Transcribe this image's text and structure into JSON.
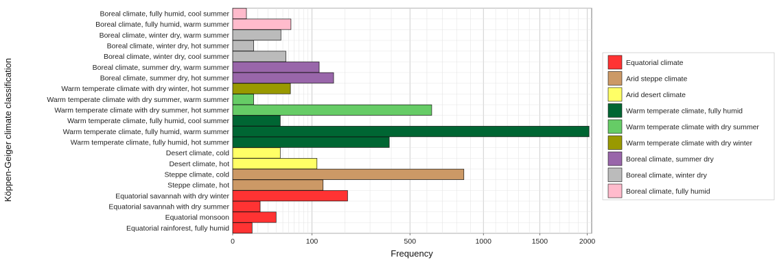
{
  "chart_data": {
    "type": "bar",
    "orientation": "horizontal",
    "xlabel": "Frequency",
    "ylabel": "Köppen-Geiger climate classification",
    "x_scale": "square-root",
    "xlim": [
      0,
      2050
    ],
    "x_ticks": [
      0,
      100,
      500,
      1000,
      1500,
      2000
    ],
    "grid": true,
    "legend_position": "right",
    "categories": [
      "Boreal climate, fully humid,  cool summer",
      "Boreal climate, fully humid,  warm summer",
      "Boreal climate, winter dry,  warm summer",
      "Boreal climate, winter dry,  hot summer",
      "Boreal climate, winter dry,  cool summer",
      "Boreal climate, summer dry, warm summer",
      "Boreal climate, summer dry,  hot summer",
      "Warm temperate climate with dry winter, hot summer",
      "Warm temperate climate with dry summer, warm summer",
      "Warm temperate climate with dry summer,  hot summer",
      "Warm temperate climate, fully humid,  cool summer",
      "Warm temperate climate, fully humid, warm summer",
      "Warm temperate climate, fully humid,  hot summer",
      "Desert climate, cold",
      "Desert climate, hot",
      "Steppe climate, cold",
      "Steppe climate, hot",
      "Equatorial savannah with dry winter",
      "Equatorial savannah with dry summer",
      "Equatorial monsoon",
      "Equatorial rainforest, fully humid"
    ],
    "values": [
      3,
      54,
      37,
      7,
      45,
      119,
      162,
      53,
      7,
      630,
      36,
      2020,
      390,
      36,
      113,
      850,
      130,
      210,
      12,
      30,
      6
    ],
    "groups": [
      8,
      8,
      7,
      7,
      7,
      6,
      6,
      5,
      4,
      4,
      3,
      3,
      3,
      2,
      2,
      1,
      1,
      0,
      0,
      0,
      0
    ],
    "legend": [
      {
        "label": "Equatorial climate",
        "color": "#ff3333"
      },
      {
        "label": "Arid steppe climate",
        "color": "#cc9966"
      },
      {
        "label": "Arid desert climate",
        "color": "#ffff66"
      },
      {
        "label": "Warm temperate climate, fully humid",
        "color": "#006633"
      },
      {
        "label": "Warm temperate climate with dry summer",
        "color": "#66cc66"
      },
      {
        "label": "Warm temperate climate with dry winter",
        "color": "#999900"
      },
      {
        "label": "Boreal climate, summer dry",
        "color": "#9966aa"
      },
      {
        "label": "Boreal climate, winter dry",
        "color": "#bbbbbb"
      },
      {
        "label": "Boreal climate, fully humid",
        "color": "#ffbbcc"
      }
    ]
  }
}
